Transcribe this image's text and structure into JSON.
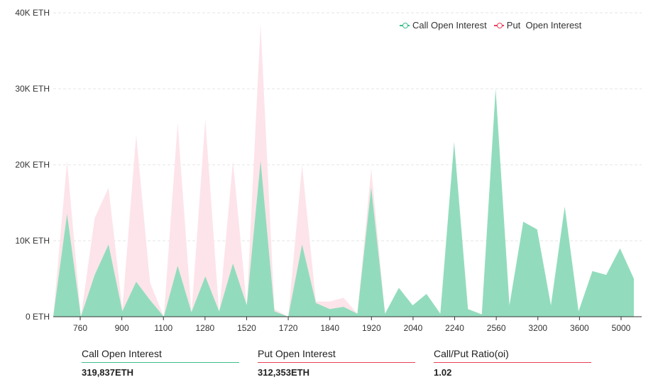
{
  "chart_data": {
    "type": "area",
    "ylabel": "",
    "xlabel": "",
    "ylim": [
      0,
      40000
    ],
    "y_ticks": [
      "0 ETH",
      "10K ETH",
      "20K ETH",
      "30K ETH",
      "40K ETH"
    ],
    "y_tick_values": [
      0,
      10000,
      20000,
      30000,
      40000
    ],
    "grid": true,
    "legend_position": "top-right",
    "x_tick_labels": [
      "760",
      "900",
      "1100",
      "1280",
      "1520",
      "1720",
      "1840",
      "1920",
      "2040",
      "2240",
      "2560",
      "3200",
      "3600",
      "5000"
    ],
    "series": [
      {
        "name": "Call Open Interest",
        "color": "#3cbf8a",
        "fill": "#92dcbd",
        "values": [
          0,
          13500,
          0,
          5500,
          9500,
          700,
          4600,
          2200,
          0,
          6700,
          600,
          5300,
          700,
          7000,
          1500,
          20500,
          700,
          0,
          9500,
          1800,
          1000,
          1300,
          400,
          17000,
          400,
          3800,
          1500,
          3000,
          400,
          23000,
          1000,
          300,
          30000,
          1500,
          12500,
          11500,
          1500,
          14500,
          700,
          6000,
          5500,
          9000,
          5000
        ]
      },
      {
        "name": "Put  Open Interest",
        "color": "#e8415a",
        "fill": "#fde4ea",
        "values": [
          0,
          20500,
          0,
          13000,
          17000,
          1000,
          24000,
          4500,
          0,
          25500,
          500,
          26000,
          500,
          20500,
          1500,
          38500,
          1000,
          0,
          20000,
          2000,
          2000,
          2500,
          400,
          19500,
          400,
          1200,
          1000,
          1500,
          300,
          500,
          800,
          300,
          2000,
          1200,
          1500,
          1000,
          800,
          1500,
          700,
          1000,
          900,
          1200,
          800
        ]
      }
    ]
  },
  "legend": {
    "call_label": "Call Open Interest",
    "put_label": "Put  Open Interest",
    "call_color": "#3cbf8a",
    "put_color": "#e8415a"
  },
  "stats": [
    {
      "label": "Call Open Interest",
      "value": "319,837ETH",
      "color": "#3cbf8a"
    },
    {
      "label": "Put Open Interest",
      "value": "312,353ETH",
      "color": "#e8415a"
    },
    {
      "label": "Call/Put Ratio(oi)",
      "value": "1.02",
      "color": "#e8415a"
    }
  ]
}
